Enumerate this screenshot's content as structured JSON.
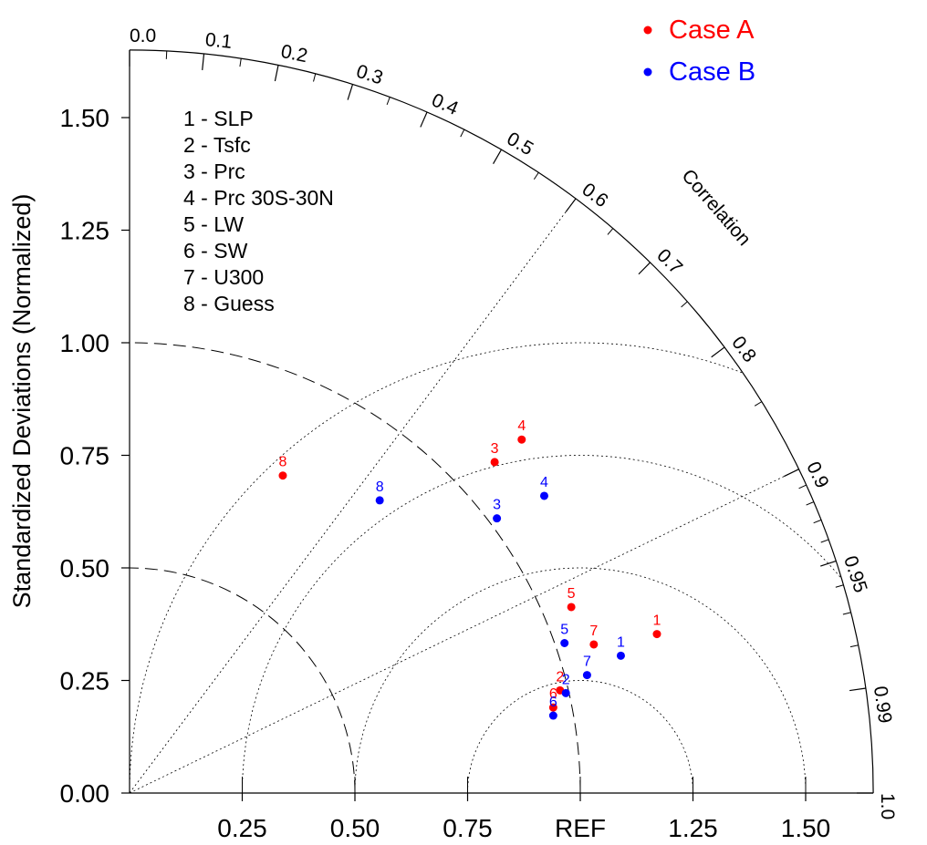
{
  "chart_data": {
    "type": "scatter",
    "title": "",
    "ylabel": "Standardized Deviations (Normalized)",
    "correlation_label": "Correlation",
    "ref_label": "REF",
    "std_range": [
      0,
      1.65
    ],
    "x_ticks": [
      {
        "value": 0.25,
        "label": "0.25"
      },
      {
        "value": 0.5,
        "label": "0.50"
      },
      {
        "value": 0.75,
        "label": "0.75"
      },
      {
        "value": 1.0,
        "label": "REF"
      },
      {
        "value": 1.25,
        "label": "1.25"
      },
      {
        "value": 1.5,
        "label": "1.50"
      }
    ],
    "y_ticks": [
      {
        "value": 0.0,
        "label": "0.00"
      },
      {
        "value": 0.25,
        "label": "0.25"
      },
      {
        "value": 0.5,
        "label": "0.50"
      },
      {
        "value": 0.75,
        "label": "0.75"
      },
      {
        "value": 1.0,
        "label": "1.00"
      },
      {
        "value": 1.25,
        "label": "1.25"
      },
      {
        "value": 1.5,
        "label": "1.50"
      }
    ],
    "correlation_ticks": [
      {
        "value": 0.0,
        "label": "0.0"
      },
      {
        "value": 0.1,
        "label": "0.1"
      },
      {
        "value": 0.2,
        "label": "0.2"
      },
      {
        "value": 0.3,
        "label": "0.3"
      },
      {
        "value": 0.4,
        "label": "0.4"
      },
      {
        "value": 0.5,
        "label": "0.5"
      },
      {
        "value": 0.6,
        "label": "0.6"
      },
      {
        "value": 0.7,
        "label": "0.7"
      },
      {
        "value": 0.8,
        "label": "0.8"
      },
      {
        "value": 0.9,
        "label": "0.9"
      },
      {
        "value": 0.95,
        "label": "0.95"
      },
      {
        "value": 0.99,
        "label": "0.99"
      },
      {
        "value": 1.0,
        "label": "1.0"
      }
    ],
    "minor_correlation_ticks": [
      0.05,
      0.15,
      0.25,
      0.35,
      0.45,
      0.55,
      0.65,
      0.75,
      0.85,
      0.91,
      0.92,
      0.93,
      0.94,
      0.96,
      0.97,
      0.98
    ],
    "correlation_rays": [
      0.6,
      0.9
    ],
    "std_arcs_dashed": [
      0.5,
      1.0
    ],
    "rms_arcs": [
      0.25,
      0.5,
      0.75,
      1.0
    ],
    "variables": [
      "1 - SLP",
      "2 - Tsfc",
      "3 - Prc",
      "4 - Prc 30S-30N",
      "5 - LW",
      "6 - SW",
      "7 - U300",
      "8 - Guess"
    ],
    "series": [
      {
        "name": "Case A",
        "color": "#ff0000",
        "points": [
          {
            "id": "1",
            "x": 1.17,
            "y": 0.353
          },
          {
            "id": "2",
            "x": 0.955,
            "y": 0.228
          },
          {
            "id": "3",
            "x": 0.81,
            "y": 0.735
          },
          {
            "id": "4",
            "x": 0.87,
            "y": 0.785
          },
          {
            "id": "5",
            "x": 0.98,
            "y": 0.413
          },
          {
            "id": "6",
            "x": 0.94,
            "y": 0.19
          },
          {
            "id": "7",
            "x": 1.03,
            "y": 0.33
          },
          {
            "id": "8",
            "x": 0.34,
            "y": 0.705
          }
        ]
      },
      {
        "name": "Case B",
        "color": "#0000ff",
        "points": [
          {
            "id": "1",
            "x": 1.09,
            "y": 0.305
          },
          {
            "id": "2",
            "x": 0.968,
            "y": 0.222
          },
          {
            "id": "3",
            "x": 0.815,
            "y": 0.61
          },
          {
            "id": "4",
            "x": 0.92,
            "y": 0.66
          },
          {
            "id": "5",
            "x": 0.965,
            "y": 0.333
          },
          {
            "id": "6",
            "x": 0.94,
            "y": 0.172
          },
          {
            "id": "7",
            "x": 1.015,
            "y": 0.262
          },
          {
            "id": "8",
            "x": 0.555,
            "y": 0.65
          }
        ]
      }
    ],
    "legend_position": "top-right"
  }
}
